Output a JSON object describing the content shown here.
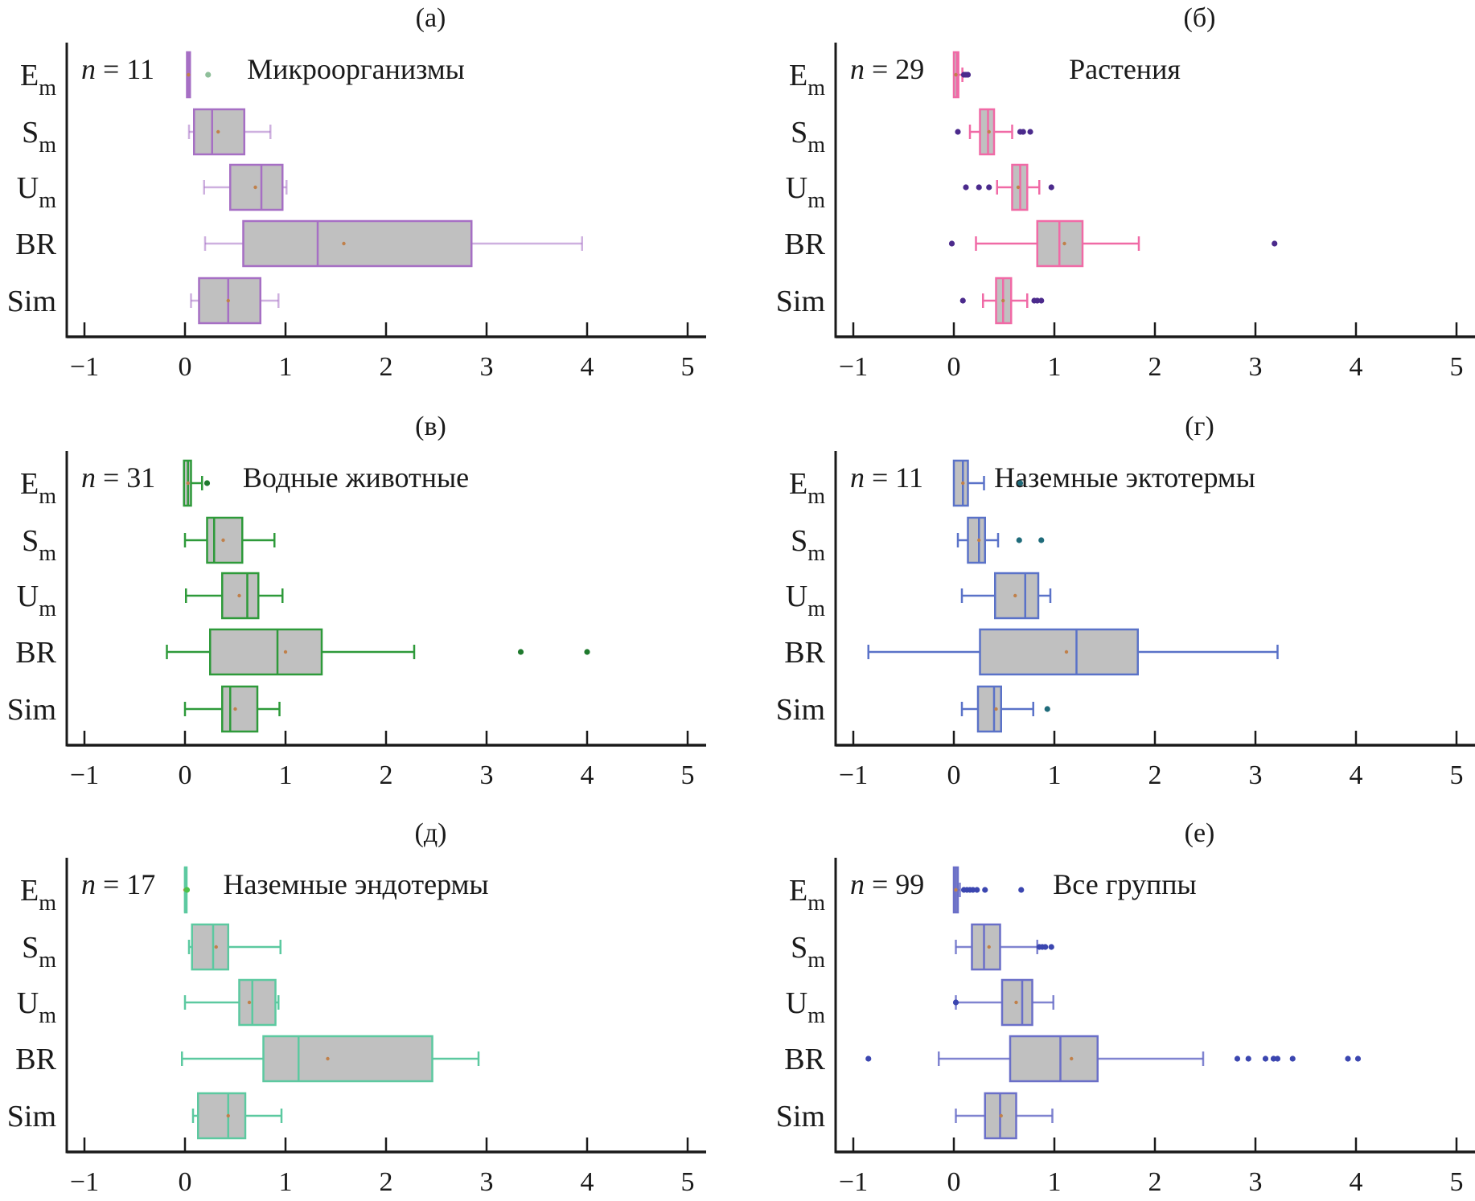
{
  "chart_data": {
    "type": "boxplot",
    "layout": "3 rows x 2 columns",
    "xlim": [
      -1,
      5
    ],
    "xticks": [
      -1,
      0,
      1,
      2,
      3,
      4,
      5
    ],
    "xtick_labels": [
      "−1",
      "0",
      "1",
      "2",
      "3",
      "4",
      "5"
    ],
    "categories": [
      {
        "main": "E",
        "sub": "m"
      },
      {
        "main": "S",
        "sub": "m"
      },
      {
        "main": "U",
        "sub": "m"
      },
      {
        "main": "BR",
        "sub": ""
      },
      {
        "main": "Sim",
        "sub": ""
      }
    ],
    "n_prefix": "n",
    "box_fill": "#c0c0c0",
    "mean_color": "#c0804a",
    "panels": [
      {
        "label": "(а)",
        "title": "Микроорганизмы",
        "n": "11",
        "color": "#a66fc4",
        "outlier_color": "#8fbf9a",
        "whisker_opacity": 0.55,
        "series": [
          {
            "whislo": 0.02,
            "q1": 0.02,
            "med": 0.035,
            "mean": 0.035,
            "q3": 0.05,
            "whishi": 0.05,
            "fliers": [
              0.23
            ]
          },
          {
            "whislo": 0.04,
            "q1": 0.09,
            "med": 0.27,
            "mean": 0.33,
            "q3": 0.59,
            "whishi": 0.85,
            "fliers": []
          },
          {
            "whislo": 0.19,
            "q1": 0.45,
            "med": 0.76,
            "mean": 0.7,
            "q3": 0.97,
            "whishi": 1.01,
            "fliers": []
          },
          {
            "whislo": 0.2,
            "q1": 0.58,
            "med": 1.32,
            "mean": 1.58,
            "q3": 2.85,
            "whishi": 3.95,
            "fliers": []
          },
          {
            "whislo": 0.06,
            "q1": 0.14,
            "med": 0.43,
            "mean": 0.43,
            "q3": 0.75,
            "whishi": 0.93,
            "fliers": []
          }
        ]
      },
      {
        "label": "(б)",
        "title": "Растения",
        "n": "29",
        "color": "#f06aa6",
        "outlier_color": "#4b2a8c",
        "whisker_opacity": 1,
        "series": [
          {
            "whislo": 0.0,
            "q1": 0.0,
            "med": 0.03,
            "mean": 0.02,
            "q3": 0.045,
            "whishi": 0.085,
            "fliers": [
              0.1,
              0.12,
              0.14
            ]
          },
          {
            "whislo": 0.16,
            "q1": 0.26,
            "med": 0.34,
            "mean": 0.35,
            "q3": 0.4,
            "whishi": 0.58,
            "fliers": [
              0.04,
              0.66,
              0.69,
              0.76
            ]
          },
          {
            "whislo": 0.43,
            "q1": 0.58,
            "med": 0.66,
            "mean": 0.64,
            "q3": 0.73,
            "whishi": 0.85,
            "fliers": [
              0.12,
              0.25,
              0.35,
              0.97
            ]
          },
          {
            "whislo": 0.22,
            "q1": 0.83,
            "med": 1.05,
            "mean": 1.1,
            "q3": 1.28,
            "whishi": 1.84,
            "fliers": [
              -0.02,
              3.19
            ]
          },
          {
            "whislo": 0.29,
            "q1": 0.42,
            "med": 0.49,
            "mean": 0.49,
            "q3": 0.57,
            "whishi": 0.73,
            "fliers": [
              0.09,
              0.8,
              0.83,
              0.87
            ]
          }
        ]
      },
      {
        "label": "(в)",
        "title": "Водные животные",
        "n": "31",
        "color": "#2e9a3a",
        "outlier_color": "#1f7a2e",
        "whisker_opacity": 1,
        "series": [
          {
            "whislo": -0.01,
            "q1": -0.01,
            "med": 0.03,
            "mean": 0.03,
            "q3": 0.06,
            "whishi": 0.17,
            "fliers": [
              0.22
            ]
          },
          {
            "whislo": 0.0,
            "q1": 0.22,
            "med": 0.29,
            "mean": 0.38,
            "q3": 0.57,
            "whishi": 0.89,
            "fliers": []
          },
          {
            "whislo": 0.01,
            "q1": 0.37,
            "med": 0.62,
            "mean": 0.54,
            "q3": 0.73,
            "whishi": 0.97,
            "fliers": []
          },
          {
            "whislo": -0.18,
            "q1": 0.25,
            "med": 0.92,
            "mean": 1.0,
            "q3": 1.36,
            "whishi": 2.28,
            "fliers": [
              3.34,
              4.0
            ]
          },
          {
            "whislo": 0.0,
            "q1": 0.37,
            "med": 0.45,
            "mean": 0.5,
            "q3": 0.72,
            "whishi": 0.94,
            "fliers": []
          }
        ]
      },
      {
        "label": "(г)",
        "title": "Наземные эктотермы",
        "n": "11",
        "color": "#5a72c8",
        "outlier_color": "#1f6b7a",
        "whisker_opacity": 1,
        "series": [
          {
            "whislo": 0.0,
            "q1": 0.0,
            "med": 0.09,
            "mean": 0.09,
            "q3": 0.14,
            "whishi": 0.3,
            "fliers": [
              0.66
            ]
          },
          {
            "whislo": 0.04,
            "q1": 0.14,
            "med": 0.25,
            "mean": 0.25,
            "q3": 0.31,
            "whishi": 0.44,
            "fliers": [
              0.65,
              0.87
            ]
          },
          {
            "whislo": 0.08,
            "q1": 0.41,
            "med": 0.71,
            "mean": 0.61,
            "q3": 0.84,
            "whishi": 0.96,
            "fliers": []
          },
          {
            "whislo": -0.85,
            "q1": 0.26,
            "med": 1.22,
            "mean": 1.12,
            "q3": 1.83,
            "whishi": 3.22,
            "fliers": []
          },
          {
            "whislo": 0.08,
            "q1": 0.24,
            "med": 0.4,
            "mean": 0.42,
            "q3": 0.47,
            "whishi": 0.79,
            "fliers": [
              0.93
            ]
          }
        ]
      },
      {
        "label": "(д)",
        "title": "Наземные эндотермы",
        "n": "17",
        "color": "#5cc9a0",
        "outlier_color": "#4cc24a",
        "whisker_opacity": 1,
        "series": [
          {
            "whislo": 0.0,
            "q1": 0.0,
            "med": 0.0,
            "mean": 0.0,
            "q3": 0.0,
            "whishi": 0.0,
            "fliers": [
              0.02
            ]
          },
          {
            "whislo": 0.04,
            "q1": 0.07,
            "med": 0.28,
            "mean": 0.31,
            "q3": 0.43,
            "whishi": 0.95,
            "fliers": []
          },
          {
            "whislo": 0.0,
            "q1": 0.54,
            "med": 0.67,
            "mean": 0.64,
            "q3": 0.9,
            "whishi": 0.93,
            "fliers": []
          },
          {
            "whislo": -0.03,
            "q1": 0.78,
            "med": 1.13,
            "mean": 1.42,
            "q3": 2.46,
            "whishi": 2.92,
            "fliers": []
          },
          {
            "whislo": 0.08,
            "q1": 0.13,
            "med": 0.43,
            "mean": 0.43,
            "q3": 0.6,
            "whishi": 0.96,
            "fliers": []
          }
        ]
      },
      {
        "label": "(е)",
        "title": "Все группы",
        "n": "99",
        "color": "#6a6fc8",
        "outlier_color": "#3b46b0",
        "whisker_opacity": 0.85,
        "series": [
          {
            "whislo": 0.0,
            "q1": 0.0,
            "med": 0.02,
            "mean": 0.02,
            "q3": 0.04,
            "whishi": 0.06,
            "fliers": [
              0.1,
              0.13,
              0.16,
              0.19,
              0.23,
              0.31,
              0.67
            ]
          },
          {
            "whislo": 0.02,
            "q1": 0.18,
            "med": 0.3,
            "mean": 0.35,
            "q3": 0.46,
            "whishi": 0.83,
            "fliers": [
              0.85,
              0.88,
              0.91,
              0.97
            ]
          },
          {
            "whislo": 0.02,
            "q1": 0.48,
            "med": 0.68,
            "mean": 0.62,
            "q3": 0.78,
            "whishi": 0.99,
            "fliers": [
              0.02
            ]
          },
          {
            "whislo": -0.15,
            "q1": 0.56,
            "med": 1.06,
            "mean": 1.17,
            "q3": 1.43,
            "whishi": 2.48,
            "fliers": [
              -0.85,
              2.82,
              2.93,
              3.1,
              3.18,
              3.22,
              3.37,
              3.92,
              4.02
            ]
          },
          {
            "whislo": 0.02,
            "q1": 0.31,
            "med": 0.46,
            "mean": 0.47,
            "q3": 0.62,
            "whishi": 0.98,
            "fliers": []
          }
        ]
      }
    ]
  }
}
